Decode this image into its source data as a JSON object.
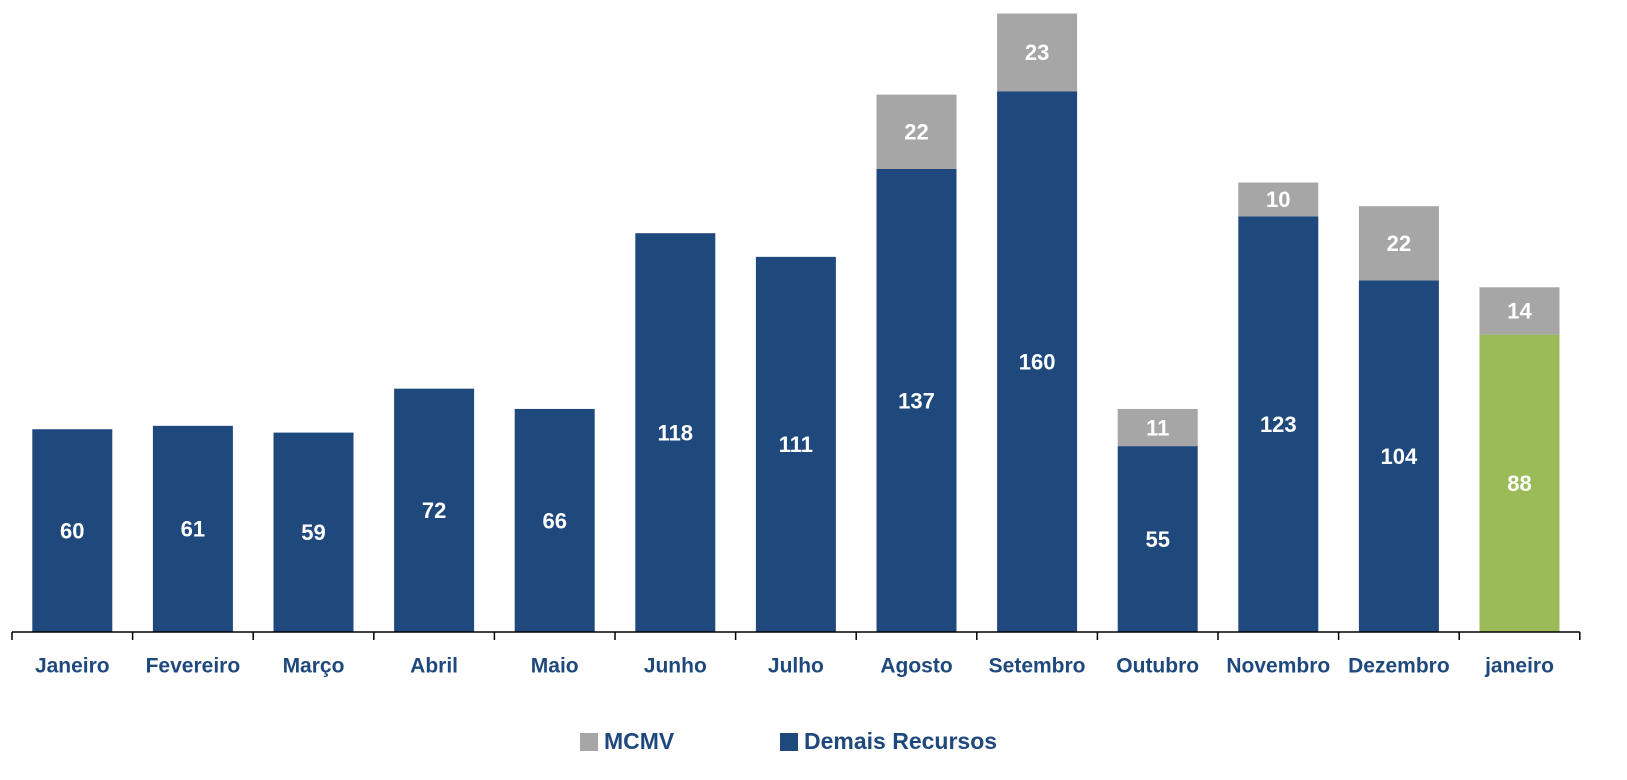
{
  "chart_data": {
    "type": "stacked_bar",
    "categories": [
      "Janeiro",
      "Fevereiro",
      "Março",
      "Abril",
      "Maio",
      "Junho",
      "Julho",
      "Agosto",
      "Setembro",
      "Outubro",
      "Novembro",
      "Dezembro",
      "janeiro"
    ],
    "series": [
      {
        "name": "MCMV",
        "color": "#a6a6a6",
        "values": [
          null,
          null,
          null,
          null,
          null,
          null,
          null,
          22,
          23,
          11,
          10,
          22,
          14
        ]
      },
      {
        "name": "Demais Recursos",
        "color": "#1f497d",
        "colors": [
          "#1f497d",
          "#1f497d",
          "#1f497d",
          "#1f497d",
          "#1f497d",
          "#1f497d",
          "#1f497d",
          "#1f497d",
          "#1f497d",
          "#1f497d",
          "#1f497d",
          "#1f497d",
          "#9bbb59"
        ],
        "values": [
          60,
          61,
          59,
          72,
          66,
          118,
          111,
          137,
          160,
          55,
          123,
          104,
          88
        ]
      }
    ],
    "ylim": [
      0,
      187
    ]
  }
}
